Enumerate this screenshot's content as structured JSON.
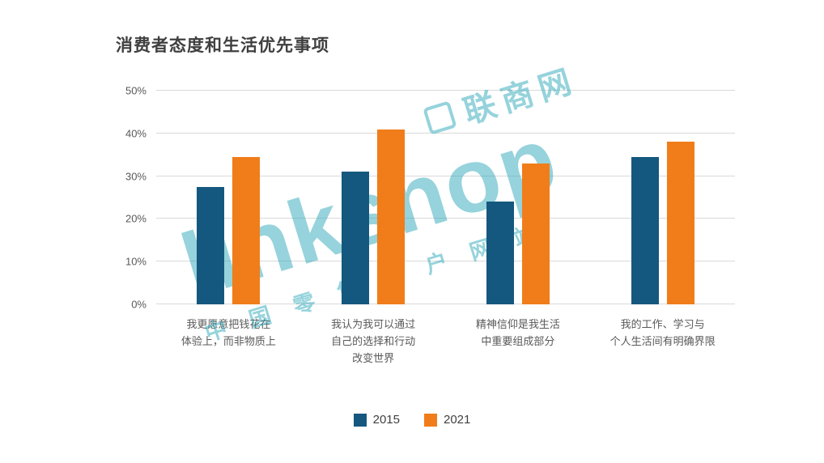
{
  "title": "消费者态度和生活优先事项",
  "watermark": {
    "brand": "linkshop",
    "cn_name": "联商网",
    "tagline": "中国零售门户网站",
    "color": "#2fa9ba"
  },
  "chart_data": {
    "type": "bar",
    "title": "消费者态度和生活优先事项",
    "categories": [
      "我更愿意把钱花在体验上，而非物质上",
      "我认为我可以通过自己的选择和行动改变世界",
      "精神信仰是我生活中重要组成部分",
      "我的工作、学习与个人生活间有明确界限"
    ],
    "category_lines": [
      [
        "我更愿意把钱花在",
        "体验上，而非物质上"
      ],
      [
        "我认为我可以通过",
        "自己的选择和行动",
        "改变世界"
      ],
      [
        "精神信仰是我生活",
        "中重要组成部分"
      ],
      [
        "我的工作、学习与",
        "个人生活间有明确界限"
      ]
    ],
    "series": [
      {
        "name": "2015",
        "color": "#15587f",
        "values": [
          27.5,
          31,
          24,
          34.5
        ]
      },
      {
        "name": "2021",
        "color": "#f07d1a",
        "values": [
          34.5,
          41,
          33,
          38
        ]
      }
    ],
    "ylim": [
      0,
      50
    ],
    "yticks": [
      "0%",
      "10%",
      "20%",
      "30%",
      "40%",
      "50%"
    ],
    "grid": true,
    "legend_position": "bottom"
  }
}
